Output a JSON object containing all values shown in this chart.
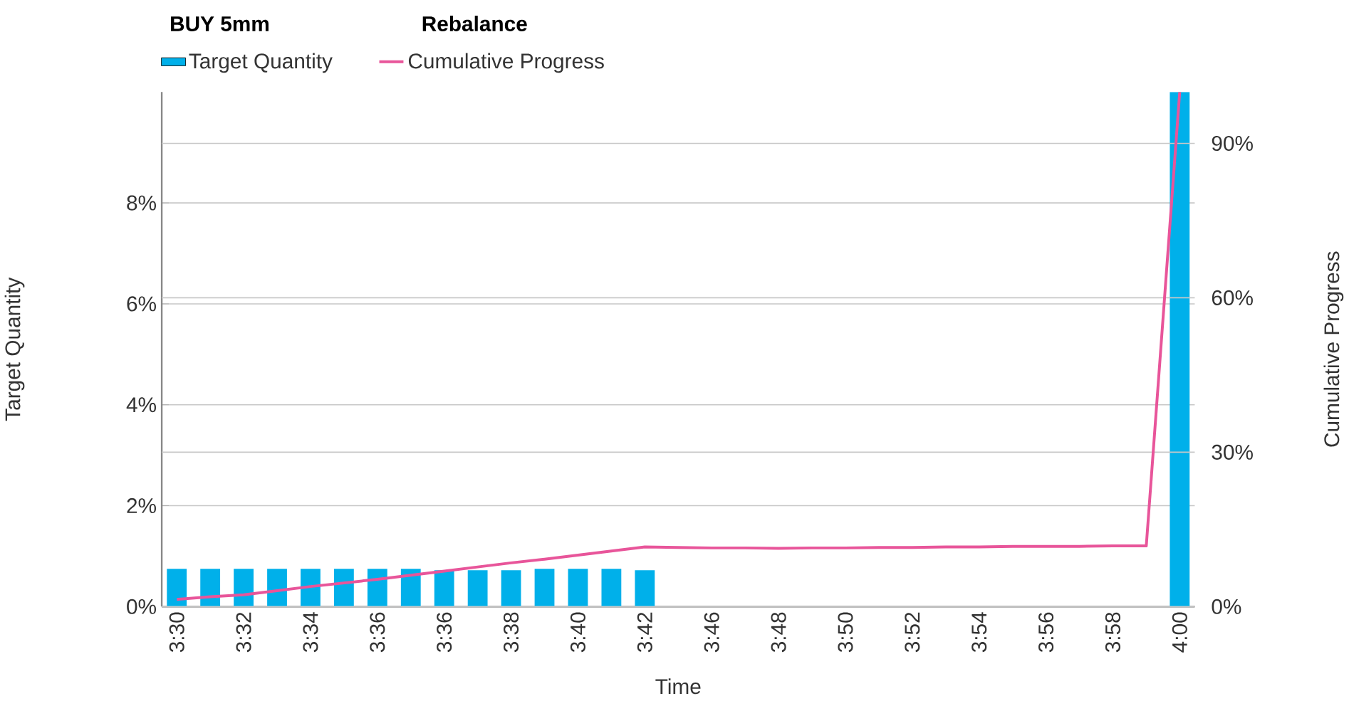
{
  "chart_data": {
    "type": "bar",
    "title": "BUY 5mm",
    "subtitle": "Rebalance",
    "xlabel": "Time",
    "ylabel": "Target Quantity",
    "y2label": "Cumulative Progress",
    "categories": [
      "3:30",
      null,
      "3:32",
      null,
      "3:34",
      null,
      "3:36",
      null,
      "3:36",
      null,
      "3:38",
      null,
      "3:40",
      null,
      "3:42",
      null,
      "3:46",
      null,
      "3:48",
      null,
      "3:50",
      null,
      "3:52",
      null,
      "3:54",
      null,
      "3:56",
      null,
      "3:58",
      null,
      "4:00"
    ],
    "series": [
      {
        "name": "Target Quantity",
        "color": "#00b0ea",
        "values": [
          0.75,
          0.75,
          0.75,
          0.75,
          0.75,
          0.75,
          0.75,
          0.75,
          0.72,
          0.72,
          0.72,
          0.75,
          0.75,
          0.75,
          0.72,
          null,
          null,
          null,
          null,
          null,
          null,
          null,
          null,
          null,
          null,
          null,
          null,
          null,
          null,
          null,
          10.2
        ]
      },
      {
        "name": "Cumulative Progress",
        "type": "line",
        "axis": "y2",
        "color": "#e8559a",
        "values": [
          1.4,
          1.9,
          2.3,
          3.1,
          3.9,
          4.6,
          5.3,
          6.1,
          6.9,
          7.7,
          8.5,
          9.2,
          10.0,
          10.8,
          11.6,
          11.5,
          11.4,
          11.4,
          11.3,
          11.4,
          11.4,
          11.5,
          11.5,
          11.6,
          11.6,
          11.7,
          11.7,
          11.7,
          11.8,
          11.8,
          100
        ]
      }
    ],
    "ylim": [
      0,
      10.2
    ],
    "yticks": [
      {
        "value": 0,
        "label": "0%"
      },
      {
        "value": 2,
        "label": "2%"
      },
      {
        "value": 4,
        "label": "4%"
      },
      {
        "value": 6,
        "label": "6%"
      },
      {
        "value": 8,
        "label": "8%"
      }
    ],
    "y2lim": [
      0,
      100
    ],
    "y2ticks": [
      {
        "value": 0,
        "label": "0%"
      },
      {
        "value": 30,
        "label": "30%"
      },
      {
        "value": 60,
        "label": "60%"
      },
      {
        "value": 90,
        "label": "90%"
      }
    ],
    "grid": "y",
    "legend": "top left"
  }
}
